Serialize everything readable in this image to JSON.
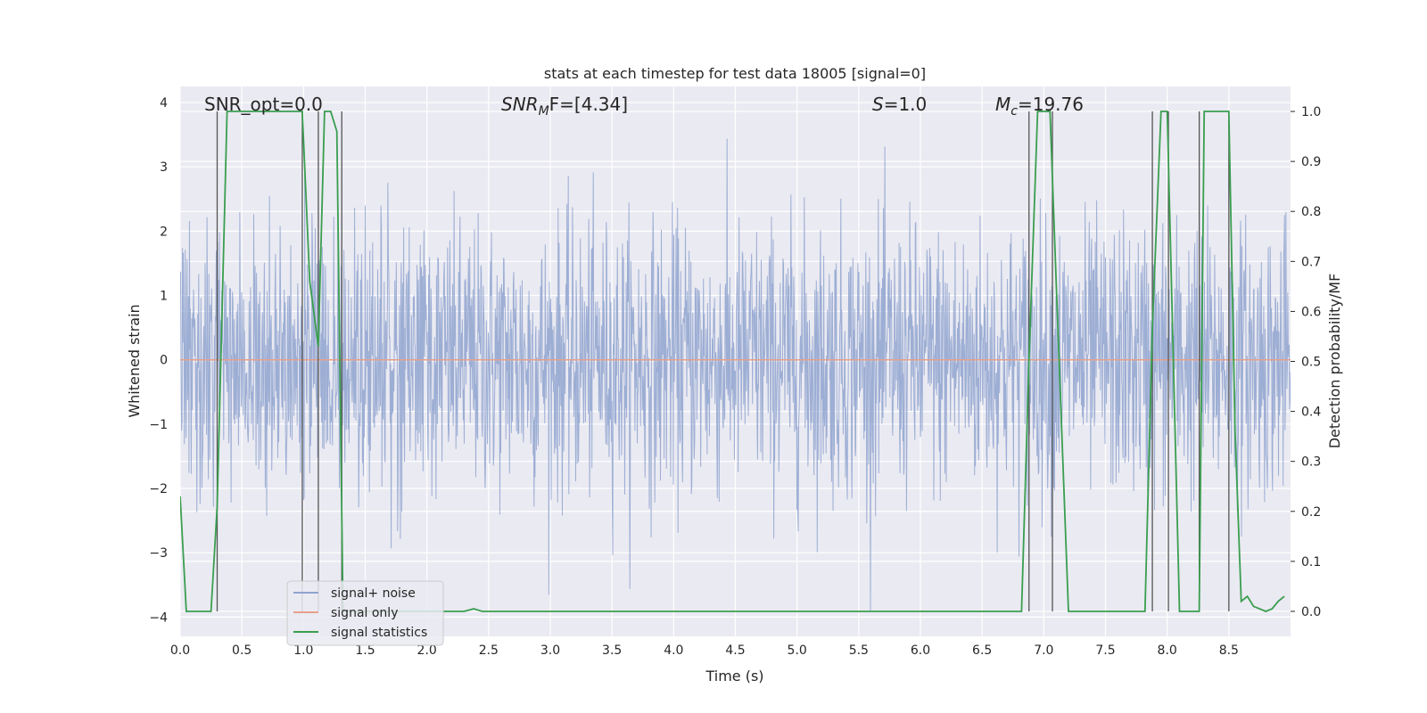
{
  "chart_data": {
    "type": "line",
    "title": "stats at each timestep for test data 18005 [signal=0]",
    "xlabel": "Time (s)",
    "ylabel_left": "Whitened strain",
    "ylabel_right": "Detection probability/MF",
    "xlim": [
      0.0,
      9.0
    ],
    "ylim_left": [
      -4.3,
      4.25
    ],
    "ylim_right": [
      -0.05,
      1.05
    ],
    "x_ticks": [
      "0.0",
      "0.5",
      "1.0",
      "1.5",
      "2.0",
      "2.5",
      "3.0",
      "3.5",
      "4.0",
      "4.5",
      "5.0",
      "5.5",
      "6.0",
      "6.5",
      "7.0",
      "7.5",
      "8.0",
      "8.5"
    ],
    "y_ticks_left": [
      "−4",
      "−3",
      "−2",
      "−1",
      "0",
      "1",
      "2",
      "3",
      "4"
    ],
    "y_ticks_right": [
      "0.0",
      "0.1",
      "0.2",
      "0.3",
      "0.4",
      "0.5",
      "0.6",
      "0.7",
      "0.8",
      "0.9",
      "1.0"
    ],
    "grid": true,
    "legend_position": "lower-left",
    "annotations": {
      "snr_opt": "SNR_opt=0.0",
      "snr_mf_base": "SNR",
      "snr_mf_sub": "M",
      "snr_mf_rest": "F=[4.34]",
      "s_base": "S",
      "s_rest": "=1.0",
      "mc_base": "M",
      "mc_sub": "c",
      "mc_rest": "=19.76"
    },
    "series": [
      {
        "name": "signal+ noise",
        "color": "#8fa3cf",
        "description_values": "noise band mostly within [-1.6, 1.6], spikes to about ±3.6"
      },
      {
        "name": "signal only",
        "color": "#e8a08a",
        "values_constant": 0.0
      },
      {
        "name": "signal statistics",
        "color": "#3a9e4f",
        "x": [
          0.0,
          0.05,
          0.25,
          0.3,
          0.38,
          0.5,
          0.7,
          0.9,
          0.99,
          1.05,
          1.12,
          1.17,
          1.22,
          1.27,
          1.32,
          1.37,
          1.45,
          1.6,
          1.8,
          2.0,
          2.2,
          2.3,
          2.38,
          2.45,
          2.6,
          3.0,
          3.5,
          4.0,
          4.5,
          5.0,
          5.5,
          6.0,
          6.5,
          6.82,
          6.88,
          6.95,
          7.0,
          7.05,
          7.1,
          7.2,
          7.5,
          7.82,
          7.88,
          7.95,
          8.0,
          8.05,
          8.1,
          8.2,
          8.26,
          8.3,
          8.38,
          8.5,
          8.55,
          8.6,
          8.65,
          8.7,
          8.8,
          8.85,
          8.9,
          8.95
        ],
        "values": [
          0.23,
          0.0,
          0.0,
          0.21,
          1.0,
          1.0,
          1.0,
          1.0,
          1.0,
          0.66,
          0.53,
          1.0,
          1.0,
          0.96,
          0.0,
          0.0,
          0.0,
          0.0,
          0.0,
          0.0,
          0.0,
          0.0,
          0.005,
          0.0,
          0.0,
          0.0,
          0.0,
          0.0,
          0.0,
          0.0,
          0.0,
          0.0,
          0.0,
          0.0,
          0.5,
          1.0,
          1.0,
          1.0,
          0.66,
          0.0,
          0.0,
          0.0,
          0.57,
          1.0,
          1.0,
          0.5,
          0.0,
          0.0,
          0.0,
          1.0,
          1.0,
          1.0,
          0.36,
          0.02,
          0.03,
          0.01,
          0.0,
          0.005,
          0.02,
          0.03
        ]
      }
    ],
    "vertical_marker_x": [
      0.3,
      0.99,
      1.12,
      1.31,
      6.88,
      7.07,
      7.88,
      8.01,
      8.26,
      8.5
    ]
  }
}
